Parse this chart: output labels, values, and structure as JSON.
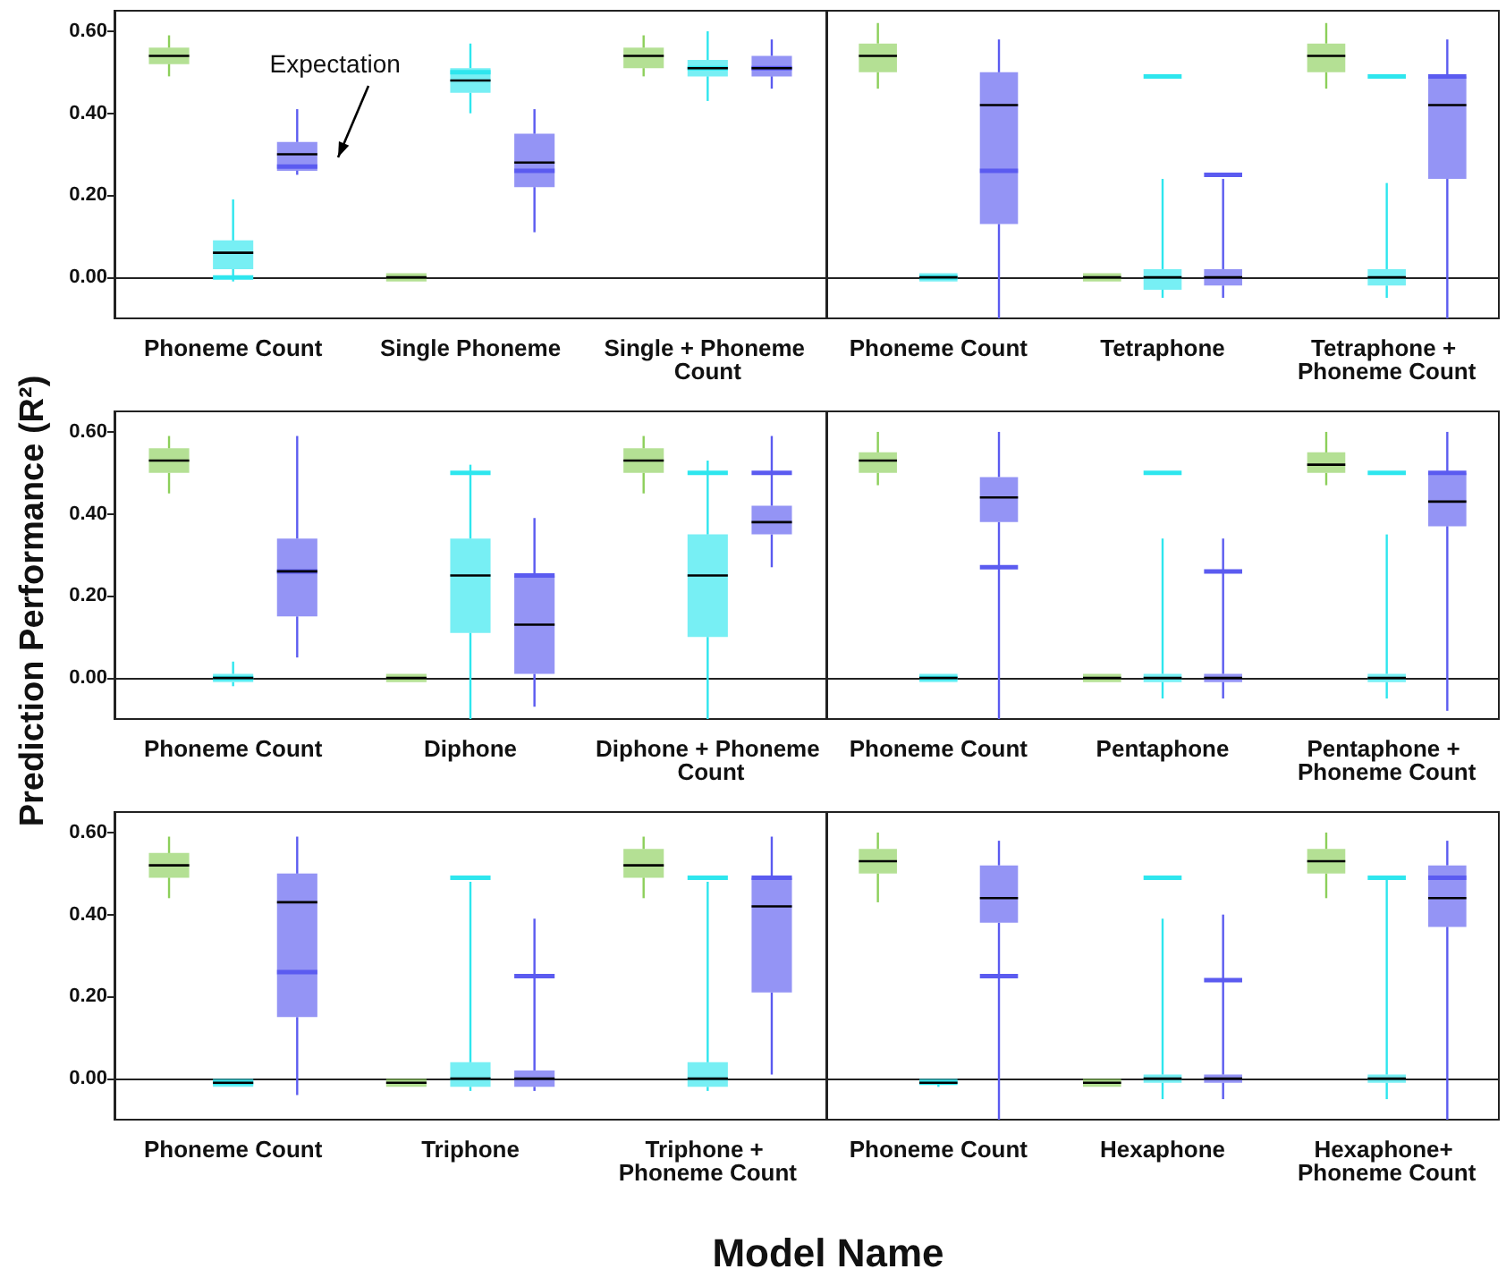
{
  "chart_data": [
    {
      "type": "box",
      "categories": [
        "Phoneme Count",
        "Single Phoneme",
        "Single + Phoneme Count"
      ],
      "ylim": [
        -0.1,
        0.65
      ],
      "yticks": [
        {
          "value": 0,
          "label": "0.00"
        },
        {
          "value": 0.2,
          "label": "0.20"
        },
        {
          "value": 0.4,
          "label": "0.40"
        },
        {
          "value": 0.6,
          "label": "0.60"
        }
      ],
      "annotations": [
        "Expectation"
      ],
      "series": [
        {
          "color": "#8ccf5a",
          "boxes": [
            {
              "low": 0.49,
              "q1": 0.52,
              "median": 0.54,
              "q3": 0.56,
              "high": 0.59
            },
            {
              "low": -0.01,
              "q1": -0.01,
              "median": 0,
              "q3": 0.01,
              "high": 0.01
            },
            {
              "low": 0.49,
              "q1": 0.51,
              "median": 0.54,
              "q3": 0.56,
              "high": 0.59
            }
          ]
        },
        {
          "color": "#2ee6ee",
          "boxes": [
            {
              "low": -0.01,
              "q1": 0.02,
              "median": 0.06,
              "q3": 0.09,
              "high": 0.19,
              "mean": 0
            },
            {
              "low": 0.4,
              "q1": 0.45,
              "median": 0.48,
              "q3": 0.51,
              "high": 0.57,
              "mean": 0.5
            },
            {
              "low": 0.43,
              "q1": 0.49,
              "median": 0.51,
              "q3": 0.53,
              "high": 0.6,
              "mean": 0.51
            }
          ]
        },
        {
          "color": "#5b5bf0",
          "boxes": [
            {
              "low": 0.25,
              "q1": 0.26,
              "median": 0.3,
              "q3": 0.33,
              "high": 0.41,
              "mean": 0.27
            },
            {
              "low": 0.11,
              "q1": 0.22,
              "median": 0.28,
              "q3": 0.35,
              "high": 0.41,
              "mean": 0.26
            },
            {
              "low": 0.46,
              "q1": 0.49,
              "median": 0.51,
              "q3": 0.54,
              "high": 0.58,
              "mean": 0.51
            }
          ]
        }
      ]
    },
    {
      "type": "box",
      "categories": [
        "Phoneme Count",
        "Tetraphone",
        "Tetraphone + Phoneme Count"
      ],
      "ylim": [
        -0.1,
        0.65
      ],
      "yticks": [
        {
          "value": 0,
          "label": "0.00"
        },
        {
          "value": 0.2,
          "label": "0.20"
        },
        {
          "value": 0.4,
          "label": "0.40"
        },
        {
          "value": 0.6,
          "label": "0.60"
        }
      ],
      "tick_labels": "x",
      "series": [
        {
          "color": "#8ccf5a",
          "boxes": [
            {
              "low": 0.46,
              "q1": 0.5,
              "median": 0.54,
              "q3": 0.57,
              "high": 0.62
            },
            {
              "low": -0.01,
              "q1": -0.01,
              "median": 0,
              "q3": 0.01,
              "high": 0.01
            },
            {
              "low": 0.46,
              "q1": 0.5,
              "median": 0.54,
              "q3": 0.57,
              "high": 0.62
            }
          ]
        },
        {
          "color": "#2ee6ee",
          "boxes": [
            {
              "low": -0.01,
              "q1": -0.01,
              "median": 0,
              "q3": 0.01,
              "high": 0.01,
              "mean": 0
            },
            {
              "low": -0.05,
              "q1": -0.03,
              "median": 0,
              "q3": 0.02,
              "high": 0.24,
              "mean": 0.49
            },
            {
              "low": -0.05,
              "q1": -0.02,
              "median": 0,
              "q3": 0.02,
              "high": 0.23,
              "mean": 0.49
            }
          ]
        },
        {
          "color": "#5b5bf0",
          "boxes": [
            {
              "low": -0.1,
              "q1": 0.13,
              "median": 0.42,
              "q3": 0.5,
              "high": 0.58,
              "mean": 0.26
            },
            {
              "low": -0.05,
              "q1": -0.02,
              "median": 0,
              "q3": 0.02,
              "high": 0.24,
              "mean": 0.25
            },
            {
              "low": -0.1,
              "q1": 0.24,
              "median": 0.42,
              "q3": 0.49,
              "high": 0.58,
              "mean": 0.49
            }
          ]
        }
      ]
    },
    {
      "type": "box",
      "categories": [
        "Phoneme Count",
        "Diphone",
        "Diphone + Phoneme Count"
      ],
      "ylim": [
        -0.1,
        0.65
      ],
      "yticks": [
        {
          "value": 0,
          "label": "0.00"
        },
        {
          "value": 0.2,
          "label": "0.20"
        },
        {
          "value": 0.4,
          "label": "0.40"
        },
        {
          "value": 0.6,
          "label": "0.60"
        }
      ],
      "ylabel": "Prediction Performance  (R²)",
      "series": [
        {
          "color": "#8ccf5a",
          "boxes": [
            {
              "low": 0.45,
              "q1": 0.5,
              "median": 0.53,
              "q3": 0.56,
              "high": 0.59
            },
            {
              "low": -0.01,
              "q1": -0.01,
              "median": 0,
              "q3": 0.01,
              "high": 0.01
            },
            {
              "low": 0.45,
              "q1": 0.5,
              "median": 0.53,
              "q3": 0.56,
              "high": 0.59
            }
          ]
        },
        {
          "color": "#2ee6ee",
          "boxes": [
            {
              "low": -0.02,
              "q1": -0.01,
              "median": 0,
              "q3": 0.01,
              "high": 0.04,
              "mean": 0
            },
            {
              "low": -0.1,
              "q1": 0.11,
              "median": 0.25,
              "q3": 0.34,
              "high": 0.52,
              "mean": 0.5
            },
            {
              "low": -0.1,
              "q1": 0.1,
              "median": 0.25,
              "q3": 0.35,
              "high": 0.53,
              "mean": 0.5
            }
          ]
        },
        {
          "color": "#5b5bf0",
          "boxes": [
            {
              "low": 0.05,
              "q1": 0.15,
              "median": 0.26,
              "q3": 0.34,
              "high": 0.59,
              "mean": 0.26
            },
            {
              "low": -0.07,
              "q1": 0.01,
              "median": 0.13,
              "q3": 0.25,
              "high": 0.39,
              "mean": 0.25
            },
            {
              "low": 0.27,
              "q1": 0.35,
              "median": 0.38,
              "q3": 0.42,
              "high": 0.59,
              "mean": 0.5
            }
          ]
        }
      ]
    },
    {
      "type": "box",
      "categories": [
        "Phoneme Count",
        "Pentaphone",
        "Pentaphone + Phoneme Count"
      ],
      "ylim": [
        -0.1,
        0.65
      ],
      "yticks": [
        {
          "value": 0,
          "label": "0.00"
        },
        {
          "value": 0.2,
          "label": "0.20"
        },
        {
          "value": 0.4,
          "label": "0.40"
        },
        {
          "value": 0.6,
          "label": "0.60"
        }
      ],
      "tick_labels": "x",
      "series": [
        {
          "color": "#8ccf5a",
          "boxes": [
            {
              "low": 0.47,
              "q1": 0.5,
              "median": 0.53,
              "q3": 0.55,
              "high": 0.6
            },
            {
              "low": -0.01,
              "q1": -0.01,
              "median": 0,
              "q3": 0.01,
              "high": 0.01
            },
            {
              "low": 0.47,
              "q1": 0.5,
              "median": 0.52,
              "q3": 0.55,
              "high": 0.6
            }
          ]
        },
        {
          "color": "#2ee6ee",
          "boxes": [
            {
              "low": -0.01,
              "q1": -0.01,
              "median": 0,
              "q3": 0.01,
              "high": 0.01,
              "mean": 0
            },
            {
              "low": -0.05,
              "q1": -0.01,
              "median": 0,
              "q3": 0.01,
              "high": 0.34,
              "mean": 0.5
            },
            {
              "low": -0.05,
              "q1": -0.01,
              "median": 0,
              "q3": 0.01,
              "high": 0.35,
              "mean": 0.5
            }
          ]
        },
        {
          "color": "#5b5bf0",
          "boxes": [
            {
              "low": -0.1,
              "q1": 0.38,
              "median": 0.44,
              "q3": 0.49,
              "high": 0.6,
              "mean": 0.27
            },
            {
              "low": -0.05,
              "q1": -0.01,
              "median": 0,
              "q3": 0.01,
              "high": 0.34,
              "mean": 0.26
            },
            {
              "low": -0.08,
              "q1": 0.37,
              "median": 0.43,
              "q3": 0.5,
              "high": 0.6,
              "mean": 0.5
            }
          ]
        }
      ]
    },
    {
      "type": "box",
      "categories": [
        "Phoneme Count",
        "Triphone",
        "Triphone + Phoneme Count"
      ],
      "ylim": [
        -0.1,
        0.65
      ],
      "yticks": [
        {
          "value": 0,
          "label": "0.00"
        },
        {
          "value": 0.2,
          "label": "0.20"
        },
        {
          "value": 0.4,
          "label": "0.40"
        },
        {
          "value": 0.6,
          "label": "0.60"
        }
      ],
      "xlabel": "Model Name",
      "series": [
        {
          "color": "#8ccf5a",
          "boxes": [
            {
              "low": 0.44,
              "q1": 0.49,
              "median": 0.52,
              "q3": 0.55,
              "high": 0.59
            },
            {
              "low": -0.02,
              "q1": -0.02,
              "median": -0.01,
              "q3": 0,
              "high": 0
            },
            {
              "low": 0.44,
              "q1": 0.49,
              "median": 0.52,
              "q3": 0.56,
              "high": 0.59
            }
          ]
        },
        {
          "color": "#2ee6ee",
          "boxes": [
            {
              "low": -0.02,
              "q1": -0.02,
              "median": -0.01,
              "q3": 0,
              "high": 0,
              "mean": -0.01
            },
            {
              "low": -0.03,
              "q1": -0.02,
              "median": 0,
              "q3": 0.04,
              "high": 0.48,
              "mean": 0.49
            },
            {
              "low": -0.03,
              "q1": -0.02,
              "median": 0,
              "q3": 0.04,
              "high": 0.48,
              "mean": 0.49
            }
          ]
        },
        {
          "color": "#5b5bf0",
          "boxes": [
            {
              "low": -0.04,
              "q1": 0.15,
              "median": 0.43,
              "q3": 0.5,
              "high": 0.59,
              "mean": 0.26
            },
            {
              "low": -0.03,
              "q1": -0.02,
              "median": 0,
              "q3": 0.02,
              "high": 0.39,
              "mean": 0.25
            },
            {
              "low": 0.01,
              "q1": 0.21,
              "median": 0.42,
              "q3": 0.49,
              "high": 0.59,
              "mean": 0.49
            }
          ]
        }
      ]
    },
    {
      "type": "box",
      "categories": [
        "Phoneme Count",
        "Hexaphone",
        "Hexaphone+ Phoneme Count"
      ],
      "ylim": [
        -0.1,
        0.65
      ],
      "yticks": [
        {
          "value": 0,
          "label": "0.00"
        },
        {
          "value": 0.2,
          "label": "0.20"
        },
        {
          "value": 0.4,
          "label": "0.40"
        },
        {
          "value": 0.6,
          "label": "0.60"
        }
      ],
      "tick_labels": "x",
      "series": [
        {
          "color": "#8ccf5a",
          "boxes": [
            {
              "low": 0.43,
              "q1": 0.5,
              "median": 0.53,
              "q3": 0.56,
              "high": 0.6
            },
            {
              "low": -0.02,
              "q1": -0.02,
              "median": -0.01,
              "q3": 0,
              "high": 0
            },
            {
              "low": 0.44,
              "q1": 0.5,
              "median": 0.53,
              "q3": 0.56,
              "high": 0.6
            }
          ]
        },
        {
          "color": "#2ee6ee",
          "boxes": [
            {
              "low": -0.02,
              "q1": -0.01,
              "median": -0.01,
              "q3": 0,
              "high": 0,
              "mean": -0.01
            },
            {
              "low": -0.05,
              "q1": -0.01,
              "median": 0,
              "q3": 0.01,
              "high": 0.39,
              "mean": 0.49
            },
            {
              "low": -0.05,
              "q1": -0.01,
              "median": 0,
              "q3": 0.01,
              "high": 0.49,
              "mean": 0.49
            }
          ]
        },
        {
          "color": "#5b5bf0",
          "boxes": [
            {
              "low": -0.1,
              "q1": 0.38,
              "median": 0.44,
              "q3": 0.52,
              "high": 0.58,
              "mean": 0.25
            },
            {
              "low": -0.05,
              "q1": -0.01,
              "median": 0,
              "q3": 0.01,
              "high": 0.4,
              "mean": 0.24
            },
            {
              "low": -0.1,
              "q1": 0.37,
              "median": 0.44,
              "q3": 0.52,
              "high": 0.58,
              "mean": 0.49
            }
          ]
        }
      ]
    }
  ]
}
